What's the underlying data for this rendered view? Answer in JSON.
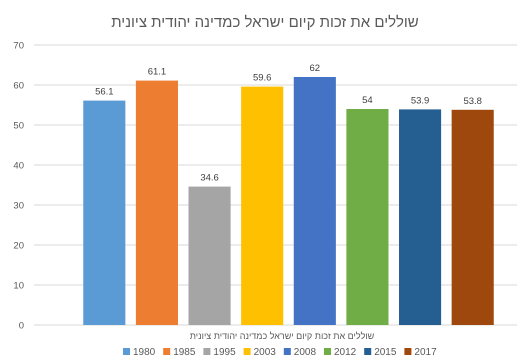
{
  "chart_data": {
    "type": "bar",
    "title": "שוללים את זכות קיום ישראל כמדינה יהודית ציונית",
    "category_label": "שוללים את זכות קיום ישראל כמדינה יהודית ציונית",
    "series": [
      {
        "name": "1980",
        "value": 56.1,
        "color": "#5b9bd5"
      },
      {
        "name": "1985",
        "value": 61.1,
        "color": "#ed7d31"
      },
      {
        "name": "1995",
        "value": 34.6,
        "color": "#a5a5a5"
      },
      {
        "name": "2003",
        "value": 59.6,
        "color": "#ffc000"
      },
      {
        "name": "2008",
        "value": 62,
        "color": "#4472c4"
      },
      {
        "name": "2012",
        "value": 54,
        "color": "#70ad47"
      },
      {
        "name": "2015",
        "value": 53.9,
        "color": "#255e91"
      },
      {
        "name": "2017",
        "value": 53.8,
        "color": "#9e480e"
      }
    ],
    "ylim": [
      0,
      70
    ],
    "yticks": [
      0,
      10,
      20,
      30,
      40,
      50,
      60,
      70
    ],
    "grid": true,
    "legend": "bottom"
  }
}
